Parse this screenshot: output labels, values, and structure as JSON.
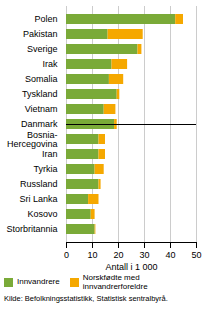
{
  "chart_data": {
    "type": "bar",
    "orientation": "horizontal",
    "stacked": true,
    "categories": [
      "Polen",
      "Pakistan",
      "Sverige",
      "Irak",
      "Somalia",
      "Tyskland",
      "Vietnam",
      "Danmark",
      "Bosnia-\nHercegovina",
      "Iran",
      "Tyrkia",
      "Russland",
      "Sri Lanka",
      "Kosovo",
      "Storbritannia"
    ],
    "series": [
      {
        "name": "Innvandrere",
        "color": "#7aaa38",
        "values": [
          42.0,
          16.0,
          27.5,
          17.5,
          16.5,
          19.5,
          14.5,
          18.5,
          12.5,
          12.5,
          11.0,
          12.5,
          8.5,
          9.5,
          11.0
        ]
      },
      {
        "name": "Norskfødte med\ninnvandrerforeldre",
        "color": "#f5a800",
        "values": [
          3.0,
          13.5,
          1.5,
          6.0,
          5.5,
          1.0,
          4.5,
          1.0,
          2.5,
          2.5,
          3.5,
          0.8,
          4.0,
          1.5,
          0.3
        ]
      }
    ],
    "xlabel": "Antall i 1 000",
    "xlim": [
      0,
      50
    ],
    "xticks": [
      0,
      10,
      20,
      30,
      40,
      50
    ],
    "grid": true,
    "legend": "bottom",
    "source": "Kilde: Befolkningsstatistikk, Statistisk sentralbyrå."
  }
}
